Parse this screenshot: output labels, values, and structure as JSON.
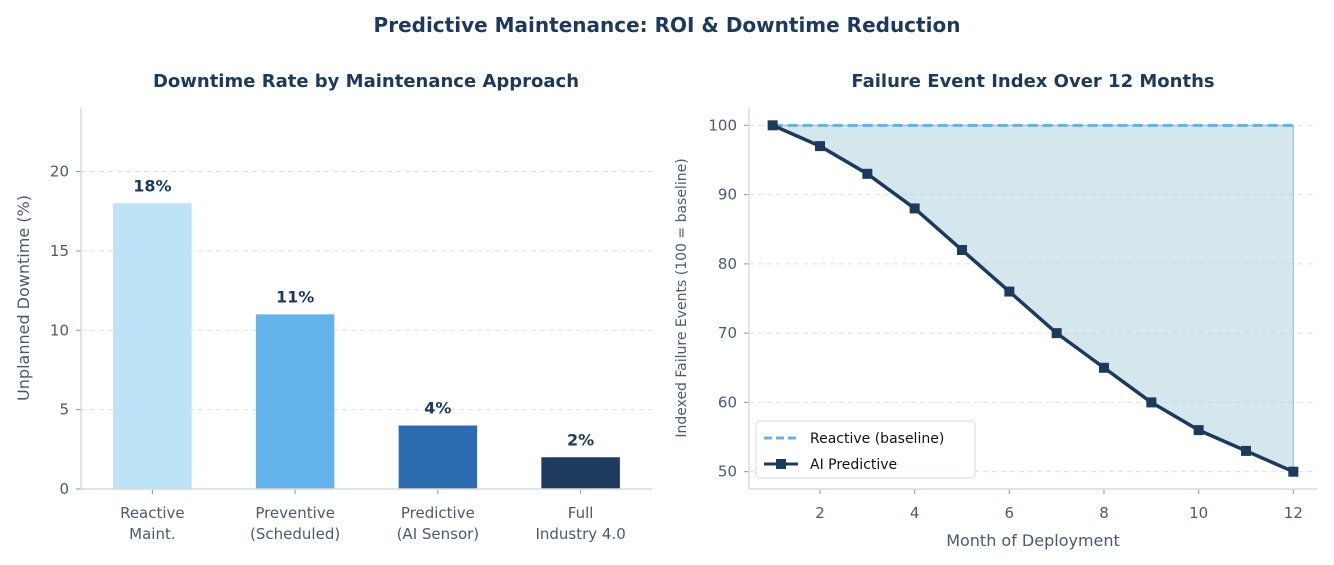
{
  "figure": {
    "title": "Predictive Maintenance: ROI & Downtime Reduction"
  },
  "chart_data": [
    {
      "type": "bar",
      "title": "Downtime Rate by Maintenance Approach",
      "xlabel": "",
      "ylabel": "Unplanned Downtime (%)",
      "ylim": [
        0,
        24
      ],
      "yticks": [
        0,
        5,
        10,
        15,
        20
      ],
      "grid": true,
      "categories": [
        [
          "Reactive",
          "Maint."
        ],
        [
          "Preventive",
          "(Scheduled)"
        ],
        [
          "Predictive",
          "(AI Sensor)"
        ],
        [
          "Full",
          "Industry 4.0"
        ]
      ],
      "values": [
        18,
        11,
        4,
        2
      ],
      "data_labels": [
        "18%",
        "11%",
        "4%",
        "2%"
      ],
      "colors": [
        "#bde3f7",
        "#63b3ea",
        "#2b6bb0",
        "#1e3a5e"
      ]
    },
    {
      "type": "line",
      "title": "Failure Event Index Over 12 Months",
      "xlabel": "Month of Deployment",
      "ylabel": "Indexed Failure Events (100 = baseline)",
      "xlim": [
        0.5,
        12.5
      ],
      "ylim": [
        47.5,
        102.5
      ],
      "xticks": [
        2,
        4,
        6,
        8,
        10,
        12
      ],
      "yticks": [
        50,
        60,
        70,
        80,
        90,
        100
      ],
      "grid": true,
      "legend_position": "bottom-left",
      "x": [
        1,
        2,
        3,
        4,
        5,
        6,
        7,
        8,
        9,
        10,
        11,
        12
      ],
      "series": [
        {
          "name": "Reactive (baseline)",
          "values": [
            100,
            100,
            100,
            100,
            100,
            100,
            100,
            100,
            100,
            100,
            100,
            100
          ],
          "style": "dashed",
          "color": "#63b3ea"
        },
        {
          "name": "AI Predictive",
          "values": [
            100,
            97,
            93,
            88,
            82,
            76,
            70,
            65,
            60,
            56,
            53,
            50
          ],
          "style": "solid-square-markers",
          "color": "#1b3a5c"
        }
      ],
      "fill_between_color": "#a9cfd9"
    }
  ]
}
